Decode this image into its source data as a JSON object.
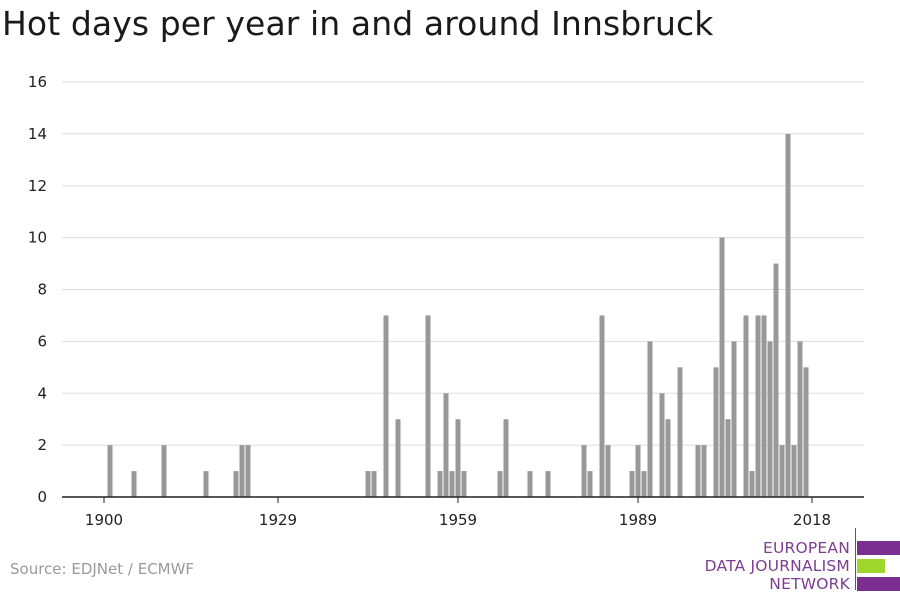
{
  "title": "Hot days per year in and around Innsbruck",
  "source": "Source: EDJNet / ECMWF",
  "logo": {
    "lines": [
      "EUROPEAN",
      "DATA JOURNALISM",
      "NETWORK"
    ],
    "colors": {
      "purple": "#7b2f91",
      "green": "#9fd62b"
    }
  },
  "colors": {
    "bar": "#999999",
    "grid": "#dddddd",
    "axis": "#222222",
    "text": "#222222"
  },
  "chart_data": {
    "type": "bar",
    "title": "Hot days per year in and around Innsbruck",
    "xlabel": "",
    "ylabel": "",
    "ylim": [
      0,
      16
    ],
    "yticks": [
      0,
      2,
      4,
      6,
      8,
      10,
      12,
      14,
      16
    ],
    "xticks": [
      1900,
      1929,
      1959,
      1989,
      2018
    ],
    "grid": true,
    "x": [
      1901,
      1905,
      1910,
      1917,
      1922,
      1923,
      1924,
      1944,
      1945,
      1947,
      1949,
      1954,
      1956,
      1957,
      1958,
      1959,
      1960,
      1966,
      1967,
      1971,
      1974,
      1980,
      1981,
      1983,
      1984,
      1988,
      1989,
      1990,
      1991,
      1993,
      1994,
      1996,
      1999,
      2000,
      2002,
      2003,
      2004,
      2005,
      2007,
      2008,
      2009,
      2010,
      2011,
      2012,
      2013,
      2014,
      2015,
      2016,
      2017,
      2018
    ],
    "values": [
      2,
      1,
      2,
      1,
      1,
      2,
      2,
      1,
      1,
      7,
      3,
      7,
      1,
      4,
      1,
      3,
      1,
      1,
      3,
      1,
      1,
      2,
      1,
      7,
      2,
      1,
      2,
      1,
      6,
      4,
      3,
      5,
      2,
      2,
      5,
      10,
      3,
      6,
      7,
      1,
      7,
      7,
      6,
      9,
      2,
      14,
      2,
      6,
      5,
      0
    ]
  }
}
